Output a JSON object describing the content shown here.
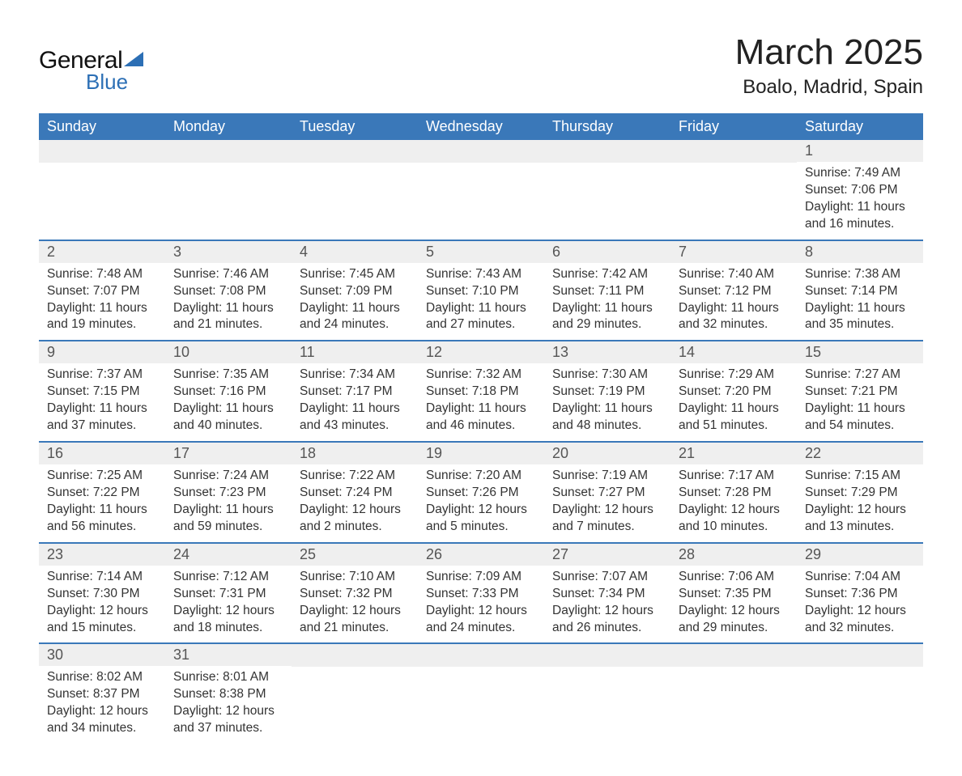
{
  "logo": {
    "word1": "General",
    "word2": "Blue",
    "accent_color": "#2c6fb5"
  },
  "title": "March 2025",
  "location": "Boalo, Madrid, Spain",
  "header_bg": "#3a78b9",
  "daynum_bg": "#efefef",
  "row_divider": "#3a78b9",
  "weekdays": [
    "Sunday",
    "Monday",
    "Tuesday",
    "Wednesday",
    "Thursday",
    "Friday",
    "Saturday"
  ],
  "labels": {
    "sunrise": "Sunrise:",
    "sunset": "Sunset:",
    "daylight": "Daylight:"
  },
  "weeks": [
    [
      null,
      null,
      null,
      null,
      null,
      null,
      {
        "n": "1",
        "sunrise": "7:49 AM",
        "sunset": "7:06 PM",
        "daylight": "11 hours and 16 minutes."
      }
    ],
    [
      {
        "n": "2",
        "sunrise": "7:48 AM",
        "sunset": "7:07 PM",
        "daylight": "11 hours and 19 minutes."
      },
      {
        "n": "3",
        "sunrise": "7:46 AM",
        "sunset": "7:08 PM",
        "daylight": "11 hours and 21 minutes."
      },
      {
        "n": "4",
        "sunrise": "7:45 AM",
        "sunset": "7:09 PM",
        "daylight": "11 hours and 24 minutes."
      },
      {
        "n": "5",
        "sunrise": "7:43 AM",
        "sunset": "7:10 PM",
        "daylight": "11 hours and 27 minutes."
      },
      {
        "n": "6",
        "sunrise": "7:42 AM",
        "sunset": "7:11 PM",
        "daylight": "11 hours and 29 minutes."
      },
      {
        "n": "7",
        "sunrise": "7:40 AM",
        "sunset": "7:12 PM",
        "daylight": "11 hours and 32 minutes."
      },
      {
        "n": "8",
        "sunrise": "7:38 AM",
        "sunset": "7:14 PM",
        "daylight": "11 hours and 35 minutes."
      }
    ],
    [
      {
        "n": "9",
        "sunrise": "7:37 AM",
        "sunset": "7:15 PM",
        "daylight": "11 hours and 37 minutes."
      },
      {
        "n": "10",
        "sunrise": "7:35 AM",
        "sunset": "7:16 PM",
        "daylight": "11 hours and 40 minutes."
      },
      {
        "n": "11",
        "sunrise": "7:34 AM",
        "sunset": "7:17 PM",
        "daylight": "11 hours and 43 minutes."
      },
      {
        "n": "12",
        "sunrise": "7:32 AM",
        "sunset": "7:18 PM",
        "daylight": "11 hours and 46 minutes."
      },
      {
        "n": "13",
        "sunrise": "7:30 AM",
        "sunset": "7:19 PM",
        "daylight": "11 hours and 48 minutes."
      },
      {
        "n": "14",
        "sunrise": "7:29 AM",
        "sunset": "7:20 PM",
        "daylight": "11 hours and 51 minutes."
      },
      {
        "n": "15",
        "sunrise": "7:27 AM",
        "sunset": "7:21 PM",
        "daylight": "11 hours and 54 minutes."
      }
    ],
    [
      {
        "n": "16",
        "sunrise": "7:25 AM",
        "sunset": "7:22 PM",
        "daylight": "11 hours and 56 minutes."
      },
      {
        "n": "17",
        "sunrise": "7:24 AM",
        "sunset": "7:23 PM",
        "daylight": "11 hours and 59 minutes."
      },
      {
        "n": "18",
        "sunrise": "7:22 AM",
        "sunset": "7:24 PM",
        "daylight": "12 hours and 2 minutes."
      },
      {
        "n": "19",
        "sunrise": "7:20 AM",
        "sunset": "7:26 PM",
        "daylight": "12 hours and 5 minutes."
      },
      {
        "n": "20",
        "sunrise": "7:19 AM",
        "sunset": "7:27 PM",
        "daylight": "12 hours and 7 minutes."
      },
      {
        "n": "21",
        "sunrise": "7:17 AM",
        "sunset": "7:28 PM",
        "daylight": "12 hours and 10 minutes."
      },
      {
        "n": "22",
        "sunrise": "7:15 AM",
        "sunset": "7:29 PM",
        "daylight": "12 hours and 13 minutes."
      }
    ],
    [
      {
        "n": "23",
        "sunrise": "7:14 AM",
        "sunset": "7:30 PM",
        "daylight": "12 hours and 15 minutes."
      },
      {
        "n": "24",
        "sunrise": "7:12 AM",
        "sunset": "7:31 PM",
        "daylight": "12 hours and 18 minutes."
      },
      {
        "n": "25",
        "sunrise": "7:10 AM",
        "sunset": "7:32 PM",
        "daylight": "12 hours and 21 minutes."
      },
      {
        "n": "26",
        "sunrise": "7:09 AM",
        "sunset": "7:33 PM",
        "daylight": "12 hours and 24 minutes."
      },
      {
        "n": "27",
        "sunrise": "7:07 AM",
        "sunset": "7:34 PM",
        "daylight": "12 hours and 26 minutes."
      },
      {
        "n": "28",
        "sunrise": "7:06 AM",
        "sunset": "7:35 PM",
        "daylight": "12 hours and 29 minutes."
      },
      {
        "n": "29",
        "sunrise": "7:04 AM",
        "sunset": "7:36 PM",
        "daylight": "12 hours and 32 minutes."
      }
    ],
    [
      {
        "n": "30",
        "sunrise": "8:02 AM",
        "sunset": "8:37 PM",
        "daylight": "12 hours and 34 minutes."
      },
      {
        "n": "31",
        "sunrise": "8:01 AM",
        "sunset": "8:38 PM",
        "daylight": "12 hours and 37 minutes."
      },
      null,
      null,
      null,
      null,
      null
    ]
  ]
}
